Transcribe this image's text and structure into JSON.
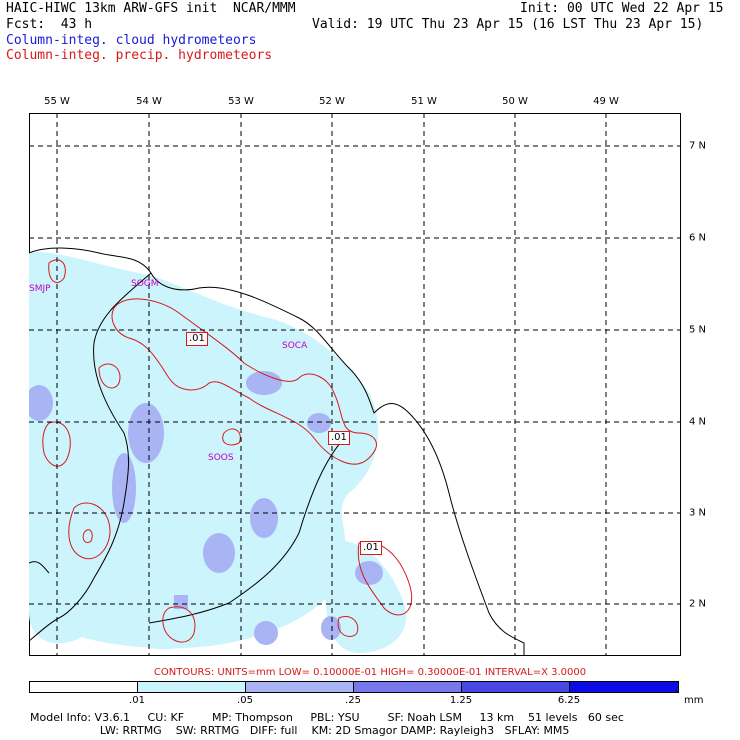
{
  "header": {
    "model_line": "HAIC-HIWC 13km ARW-GFS init  NCAR/MMM",
    "init_line": "Init: 00 UTC Wed 22 Apr 15",
    "fcst_line": "Fcst:  43 h",
    "valid_line": "Valid: 19 UTC Thu 23 Apr 15 (16 LST Thu 23 Apr 15)",
    "field1": "Column-integ. cloud hydrometeors",
    "field2": "Column-integ. precip. hydrometeors"
  },
  "map": {
    "lon_labels": [
      "55 W",
      "54 W",
      "53 W",
      "52 W",
      "51 W",
      "50 W",
      "49 W"
    ],
    "lat_labels": [
      "7 N",
      "6 N",
      "5 N",
      "4 N",
      "3 N",
      "2 N"
    ],
    "places": [
      "SMJP",
      "SOGM",
      "SOCA",
      "SOOS"
    ],
    "contour_boxes": [
      ".01",
      ".01",
      ".01"
    ]
  },
  "legend": {
    "contours_text": "CONTOURS:  UNITS=mm  LOW= 0.10000E-01  HIGH= 0.30000E-01  INTERVAL=X  3.0000",
    "ticks": [
      ".01",
      ".05",
      ".25",
      "1.25",
      "6.25"
    ],
    "units": "mm",
    "colors": [
      "#ffffff",
      "#ccf4fc",
      "#a8b4f4",
      "#7878ec",
      "#4848e4",
      "#0c0ce4"
    ]
  },
  "footer": {
    "line1": "Model Info: V3.6.1     CU: KF        MP: Thompson     PBL: YSU        SF: Noah LSM     13 km    51 levels   60 sec",
    "line2": "                    LW: RRTMG    SW: RRTMG   DIFF: full    KM: 2D Smagor DAMP: Rayleigh3   SFLAY: MM5"
  }
}
